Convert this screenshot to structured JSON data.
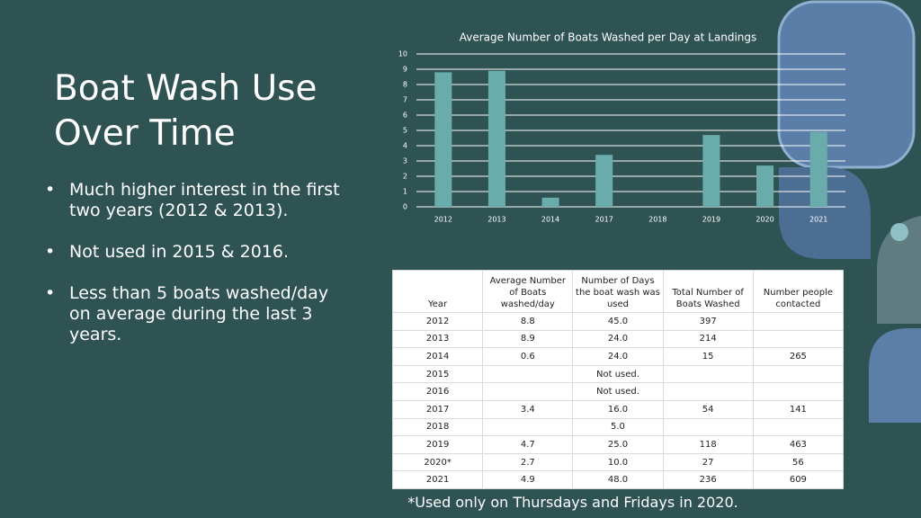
{
  "title": "Boat Wash Use Over Time",
  "bullets": [
    "Much higher interest in the first two years (2012 & 2013).",
    "Not used in 2015 & 2016.",
    "Less than 5 boats washed/day on average during the last 3 years."
  ],
  "chart_data": {
    "type": "bar",
    "title": "Average Number of Boats Washed per Day at Landings",
    "categories": [
      "2012",
      "2013",
      "2014",
      "2017",
      "2018",
      "2019",
      "2020",
      "2021"
    ],
    "values": [
      8.8,
      8.9,
      0.6,
      3.4,
      null,
      4.7,
      2.7,
      4.9
    ],
    "color": "#6aabab",
    "ylim": [
      0,
      10
    ],
    "yticks": [
      0,
      1,
      2,
      3,
      4,
      5,
      6,
      7,
      8,
      9,
      10
    ],
    "grid": true
  },
  "table": {
    "header": [
      "Year",
      "Average Number of Boats washed/day",
      "Number of Days the boat wash was used",
      "Total Number of Boats Washed",
      "Number people contacted"
    ],
    "rows": [
      [
        "2012",
        "8.8",
        "45.0",
        "397",
        null
      ],
      [
        "2013",
        "8.9",
        "24.0",
        "214",
        null
      ],
      [
        "2014",
        "0.6",
        "24.0",
        "15",
        "265"
      ],
      [
        "2015",
        null,
        "Not used.",
        null,
        null
      ],
      [
        "2016",
        null,
        "Not used.",
        null,
        null
      ],
      [
        "2017",
        "3.4",
        "16.0",
        "54",
        "141"
      ],
      [
        "2018",
        null,
        "5.0",
        null,
        null
      ],
      [
        "2019",
        "4.7",
        "25.0",
        "118",
        "463"
      ],
      [
        "2020*",
        "2.7",
        "10.0",
        "27",
        "56"
      ],
      [
        "2021",
        "4.9",
        "48.0",
        "236",
        "609"
      ]
    ]
  },
  "footnote": "*Used only on Thursdays and Fridays in 2020."
}
